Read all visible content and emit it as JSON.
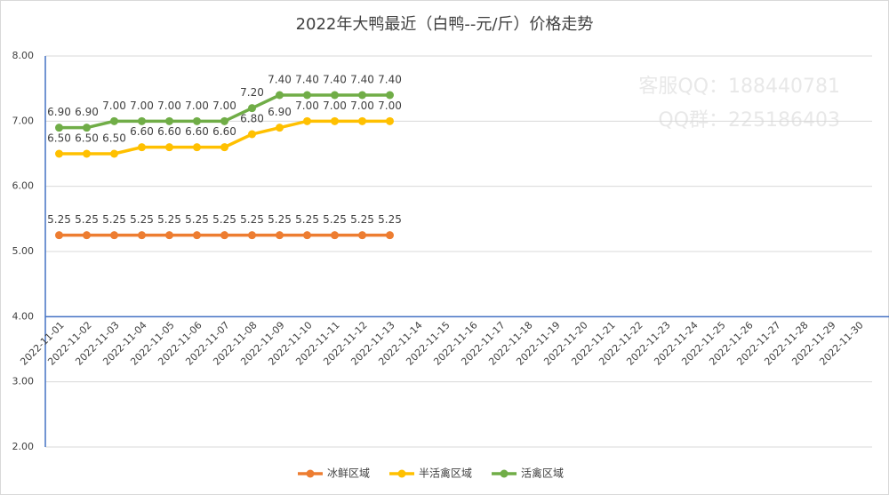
{
  "chart_data": {
    "type": "line",
    "title": "2022年大鸭最近（白鸭--元/斤）价格走势",
    "watermark": [
      "客服QQ：188440781",
      "QQ群：225186403"
    ],
    "categories": [
      "2022-11-01",
      "2022-11-02",
      "2022-11-03",
      "2022-11-04",
      "2022-11-05",
      "2022-11-06",
      "2022-11-07",
      "2022-11-08",
      "2022-11-09",
      "2022-11-10",
      "2022-11-11",
      "2022-11-12",
      "2022-11-13",
      "2022-11-14",
      "2022-11-15",
      "2022-11-16",
      "2022-11-17",
      "2022-11-18",
      "2022-11-19",
      "2022-11-20",
      "2022-11-21",
      "2022-11-22",
      "2022-11-23",
      "2022-11-24",
      "2022-11-25",
      "2022-11-26",
      "2022-11-27",
      "2022-11-28",
      "2022-11-29",
      "2022-11-30"
    ],
    "series": [
      {
        "name": "冰鲜区域",
        "color": "#ed7d31",
        "values": [
          5.25,
          5.25,
          5.25,
          5.25,
          5.25,
          5.25,
          5.25,
          5.25,
          5.25,
          5.25,
          5.25,
          5.25,
          5.25,
          null,
          null,
          null,
          null,
          null,
          null,
          null,
          null,
          null,
          null,
          null,
          null,
          null,
          null,
          null,
          null,
          null
        ],
        "value_labels": [
          "5.25",
          "5.25",
          "5.25",
          "5.25",
          "5.25",
          "5.25",
          "5.25",
          "5.25",
          "5.25",
          "5.25",
          "5.25",
          "5.25",
          "5.25",
          null,
          null,
          null,
          null,
          null,
          null,
          null,
          null,
          null,
          null,
          null,
          null,
          null,
          null,
          null,
          null,
          null
        ]
      },
      {
        "name": "半活禽区域",
        "color": "#ffc000",
        "values": [
          6.5,
          6.5,
          6.5,
          6.6,
          6.6,
          6.6,
          6.6,
          6.8,
          6.9,
          7,
          7,
          7,
          7,
          null,
          null,
          null,
          null,
          null,
          null,
          null,
          null,
          null,
          null,
          null,
          null,
          null,
          null,
          null,
          null,
          null
        ],
        "value_labels": [
          "6.50",
          "6.50",
          "6.50",
          "6.60",
          "6.60",
          "6.60",
          "6.60",
          "6.80",
          "6.90",
          "7.00",
          "7.00",
          "7.00",
          "7.00",
          null,
          null,
          null,
          null,
          null,
          null,
          null,
          null,
          null,
          null,
          null,
          null,
          null,
          null,
          null,
          null,
          null
        ]
      },
      {
        "name": "活禽区域",
        "color": "#70ad47",
        "values": [
          6.9,
          6.9,
          7,
          7,
          7,
          7,
          7,
          7.2,
          7.4,
          7.4,
          7.4,
          7.4,
          7.4,
          null,
          null,
          null,
          null,
          null,
          null,
          null,
          null,
          null,
          null,
          null,
          null,
          null,
          null,
          null,
          null,
          null
        ],
        "value_labels": [
          "6.90",
          "6.90",
          "7.00",
          "7.00",
          "7.00",
          "7.00",
          "7.00",
          "7.20",
          "7.40",
          "7.40",
          "7.40",
          "7.40",
          "7.40",
          null,
          null,
          null,
          null,
          null,
          null,
          null,
          null,
          null,
          null,
          null,
          null,
          null,
          null,
          null,
          null,
          null
        ]
      }
    ],
    "ylim": [
      2,
      8
    ],
    "yticks": [
      {
        "value": 2,
        "label": "2.00"
      },
      {
        "value": 3,
        "label": "3.00"
      },
      {
        "value": 4,
        "label": "4.00"
      },
      {
        "value": 5,
        "label": "5.00"
      },
      {
        "value": 6,
        "label": "6.00"
      },
      {
        "value": 7,
        "label": "7.00"
      },
      {
        "value": 8,
        "label": "8.00"
      }
    ],
    "x_axis_crosses": 4,
    "grid": true,
    "legend": "bottom"
  }
}
